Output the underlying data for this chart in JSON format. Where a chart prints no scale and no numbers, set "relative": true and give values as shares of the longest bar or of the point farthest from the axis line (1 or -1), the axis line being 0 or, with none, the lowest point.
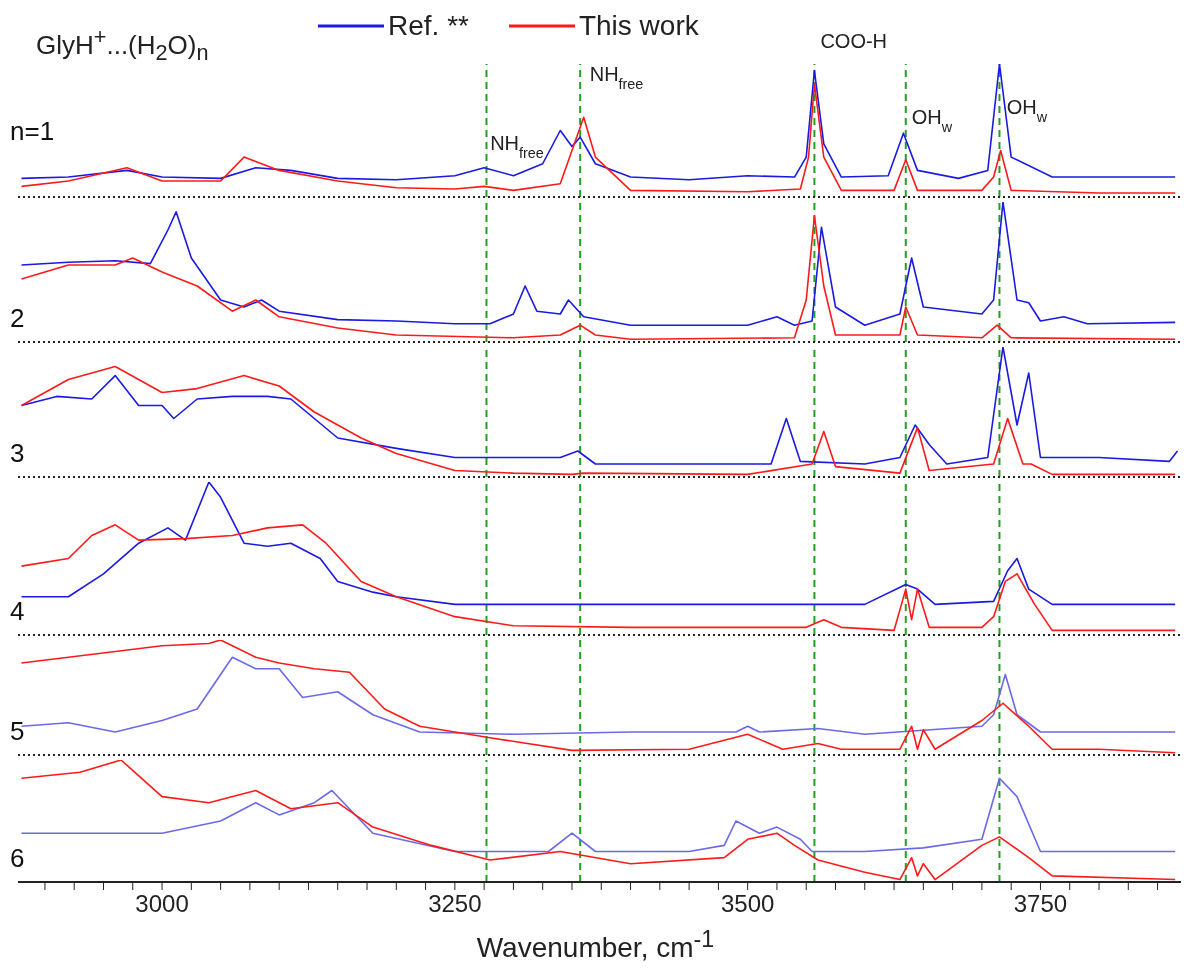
{
  "chart_data": [
    {
      "type": "line",
      "relative": true,
      "title": "GlyH$^{+}$...(H$_{2}$O)$_{n}$",
      "legend": "top",
      "xlim": [
        2877,
        3870
      ],
      "tick_labels": false,
      "annotations": [
        "n=1",
        {
          "text": "NH$_{free}$",
          "x": 3275,
          "y": 0.08
        },
        {
          "text": "NH$_{free}$",
          "x": 3360,
          "y": 0.6
        },
        {
          "text": "COO-H",
          "x": 3557,
          "y": 0.85
        },
        {
          "text": "OH$_{w}$",
          "x": 3635,
          "y": 0.28
        },
        {
          "text": "OH$_{w}$",
          "x": 3716,
          "y": 0.35
        }
      ],
      "ref_lines": [
        {
          "axis": "x",
          "value": 3277,
          "color": "#22a022",
          "line_style": "dashed"
        },
        {
          "axis": "x",
          "value": 3357,
          "color": "#22a022",
          "line_style": "dashed"
        },
        {
          "axis": "x",
          "value": 3557,
          "color": "#22a022",
          "line_style": "dashed"
        },
        {
          "axis": "x",
          "value": 3635,
          "color": "#22a022",
          "line_style": "dashed"
        },
        {
          "axis": "x",
          "value": 3715,
          "color": "#22a022",
          "line_style": "dashed"
        }
      ],
      "series": [
        {
          "name": "Ref. **",
          "color": "#1a1ae0",
          "x": [
            2880,
            2920,
            2970,
            3000,
            3050,
            3080,
            3110,
            3150,
            3200,
            3250,
            3275,
            3300,
            3325,
            3340,
            3350,
            3357,
            3370,
            3400,
            3450,
            3500,
            3540,
            3550,
            3557,
            3565,
            3580,
            3620,
            3633,
            3645,
            3680,
            3705,
            3715,
            3725,
            3760,
            3800,
            3865
          ],
          "values": [
            0.14,
            0.15,
            0.2,
            0.15,
            0.14,
            0.22,
            0.2,
            0.14,
            0.13,
            0.16,
            0.22,
            0.16,
            0.25,
            0.5,
            0.38,
            0.45,
            0.25,
            0.15,
            0.13,
            0.16,
            0.15,
            0.3,
            0.95,
            0.4,
            0.15,
            0.16,
            0.48,
            0.2,
            0.14,
            0.2,
            1,
            0.3,
            0.15,
            0.15,
            0.15
          ]
        },
        {
          "name": "This work",
          "color": "#ff1a1a",
          "x": [
            2880,
            2920,
            2970,
            3000,
            3050,
            3070,
            3100,
            3150,
            3200,
            3250,
            3275,
            3300,
            3340,
            3350,
            3360,
            3370,
            3400,
            3500,
            3545,
            3552,
            3557,
            3565,
            3580,
            3625,
            3635,
            3645,
            3700,
            3710,
            3716,
            3725,
            3800,
            3865
          ],
          "values": [
            0.08,
            0.12,
            0.22,
            0.12,
            0.12,
            0.3,
            0.2,
            0.12,
            0.07,
            0.06,
            0.08,
            0.05,
            0.1,
            0.35,
            0.6,
            0.3,
            0.05,
            0.04,
            0.06,
            0.3,
            0.85,
            0.3,
            0.05,
            0.05,
            0.28,
            0.05,
            0.05,
            0.15,
            0.35,
            0.05,
            0.03,
            0.03
          ]
        }
      ]
    },
    {
      "type": "line",
      "relative": true,
      "xlim": [
        2877,
        3870
      ],
      "tick_labels": false,
      "annotations": [
        "2"
      ],
      "ref_lines": [
        {
          "axis": "x",
          "value": 3277,
          "color": "#22a022",
          "line_style": "dashed"
        },
        {
          "axis": "x",
          "value": 3357,
          "color": "#22a022",
          "line_style": "dashed"
        },
        {
          "axis": "x",
          "value": 3557,
          "color": "#22a022",
          "line_style": "dashed"
        },
        {
          "axis": "x",
          "value": 3635,
          "color": "#22a022",
          "line_style": "dashed"
        },
        {
          "axis": "x",
          "value": 3715,
          "color": "#22a022",
          "line_style": "dashed"
        }
      ],
      "series": [
        {
          "color": "#1a1ae0",
          "x": [
            2880,
            2920,
            2960,
            2990,
            3005,
            3012,
            3025,
            3050,
            3070,
            3085,
            3100,
            3150,
            3200,
            3250,
            3280,
            3300,
            3310,
            3320,
            3340,
            3347,
            3360,
            3400,
            3500,
            3525,
            3540,
            3555,
            3563,
            3575,
            3600,
            3630,
            3640,
            3650,
            3700,
            3710,
            3718,
            3730,
            3740,
            3750,
            3770,
            3790,
            3865
          ],
          "values": [
            0.55,
            0.57,
            0.58,
            0.56,
            0.8,
            0.93,
            0.6,
            0.3,
            0.25,
            0.3,
            0.22,
            0.16,
            0.15,
            0.13,
            0.13,
            0.2,
            0.4,
            0.22,
            0.2,
            0.3,
            0.18,
            0.12,
            0.12,
            0.18,
            0.12,
            0.15,
            0.82,
            0.25,
            0.12,
            0.2,
            0.6,
            0.25,
            0.2,
            0.3,
            1,
            0.3,
            0.28,
            0.15,
            0.18,
            0.13,
            0.14
          ]
        },
        {
          "color": "#ff1a1a",
          "x": [
            2880,
            2920,
            2960,
            2975,
            3000,
            3030,
            3060,
            3080,
            3100,
            3150,
            3200,
            3300,
            3340,
            3357,
            3370,
            3400,
            3540,
            3550,
            3557,
            3565,
            3575,
            3630,
            3635,
            3645,
            3700,
            3713,
            3725,
            3865
          ],
          "values": [
            0.45,
            0.55,
            0.55,
            0.6,
            0.5,
            0.4,
            0.22,
            0.3,
            0.18,
            0.1,
            0.05,
            0.03,
            0.05,
            0.12,
            0.05,
            0.02,
            0.03,
            0.3,
            0.9,
            0.4,
            0.05,
            0.05,
            0.25,
            0.05,
            0.03,
            0.12,
            0.03,
            0.02
          ]
        }
      ]
    },
    {
      "type": "line",
      "relative": true,
      "xlim": [
        2877,
        3870
      ],
      "tick_labels": false,
      "annotations": [
        "3"
      ],
      "ref_lines": [
        {
          "axis": "x",
          "value": 3277,
          "color": "#22a022",
          "line_style": "dashed"
        },
        {
          "axis": "x",
          "value": 3357,
          "color": "#22a022",
          "line_style": "dashed"
        },
        {
          "axis": "x",
          "value": 3557,
          "color": "#22a022",
          "line_style": "dashed"
        },
        {
          "axis": "x",
          "value": 3635,
          "color": "#22a022",
          "line_style": "dashed"
        },
        {
          "axis": "x",
          "value": 3715,
          "color": "#22a022",
          "line_style": "dashed"
        }
      ],
      "series": [
        {
          "color": "#1a1ae0",
          "x": [
            2880,
            2910,
            2940,
            2960,
            2980,
            3000,
            3010,
            3030,
            3060,
            3090,
            3110,
            3130,
            3150,
            3200,
            3250,
            3300,
            3340,
            3355,
            3370,
            3450,
            3520,
            3533,
            3545,
            3600,
            3630,
            3643,
            3655,
            3670,
            3705,
            3718,
            3730,
            3740,
            3750,
            3800,
            3860,
            3867
          ],
          "values": [
            0.55,
            0.62,
            0.6,
            0.78,
            0.55,
            0.55,
            0.45,
            0.6,
            0.62,
            0.62,
            0.6,
            0.45,
            0.3,
            0.22,
            0.15,
            0.15,
            0.15,
            0.2,
            0.1,
            0.1,
            0.1,
            0.45,
            0.12,
            0.1,
            0.15,
            0.4,
            0.25,
            0.1,
            0.15,
            1,
            0.4,
            0.8,
            0.15,
            0.15,
            0.12,
            0.2
          ]
        },
        {
          "color": "#ff1a1a",
          "x": [
            2880,
            2920,
            2960,
            3000,
            3030,
            3070,
            3100,
            3130,
            3170,
            3200,
            3250,
            3300,
            3350,
            3360,
            3500,
            3555,
            3565,
            3575,
            3630,
            3645,
            3655,
            3710,
            3722,
            3735,
            3742,
            3760,
            3865
          ],
          "values": [
            0.55,
            0.75,
            0.85,
            0.65,
            0.68,
            0.78,
            0.7,
            0.5,
            0.3,
            0.18,
            0.05,
            0.03,
            0.02,
            0.03,
            0.02,
            0.1,
            0.35,
            0.08,
            0.03,
            0.38,
            0.05,
            0.1,
            0.45,
            0.1,
            0.1,
            0.02,
            0.02
          ]
        }
      ]
    },
    {
      "type": "line",
      "relative": true,
      "xlim": [
        2877,
        3870
      ],
      "tick_labels": false,
      "annotations": [
        "4"
      ],
      "ref_lines": [
        {
          "axis": "x",
          "value": 3277,
          "color": "#22a022",
          "line_style": "dashed"
        },
        {
          "axis": "x",
          "value": 3357,
          "color": "#22a022",
          "line_style": "dashed"
        },
        {
          "axis": "x",
          "value": 3557,
          "color": "#22a022",
          "line_style": "dashed"
        },
        {
          "axis": "x",
          "value": 3635,
          "color": "#22a022",
          "line_style": "dashed"
        },
        {
          "axis": "x",
          "value": 3715,
          "color": "#22a022",
          "line_style": "dashed"
        }
      ],
      "series": [
        {
          "color": "#1a1ae0",
          "x": [
            2880,
            2920,
            2950,
            2980,
            3005,
            3020,
            3040,
            3050,
            3070,
            3090,
            3110,
            3135,
            3150,
            3180,
            3200,
            3250,
            3400,
            3600,
            3635,
            3645,
            3660,
            3710,
            3722,
            3730,
            3740,
            3760,
            3865
          ],
          "values": [
            0.25,
            0.25,
            0.4,
            0.6,
            0.7,
            0.62,
            1,
            0.9,
            0.6,
            0.58,
            0.6,
            0.5,
            0.35,
            0.28,
            0.25,
            0.2,
            0.2,
            0.2,
            0.33,
            0.3,
            0.2,
            0.22,
            0.42,
            0.5,
            0.3,
            0.2,
            0.2
          ]
        },
        {
          "color": "#ff1a1a",
          "x": [
            2880,
            2920,
            2940,
            2960,
            2980,
            3020,
            3060,
            3090,
            3120,
            3140,
            3170,
            3200,
            3250,
            3300,
            3400,
            3550,
            3565,
            3580,
            3625,
            3635,
            3640,
            3645,
            3655,
            3700,
            3710,
            3720,
            3730,
            3745,
            3760,
            3865
          ],
          "values": [
            0.45,
            0.5,
            0.65,
            0.72,
            0.62,
            0.63,
            0.65,
            0.7,
            0.72,
            0.6,
            0.35,
            0.25,
            0.12,
            0.06,
            0.05,
            0.05,
            0.1,
            0.05,
            0.03,
            0.3,
            0.1,
            0.3,
            0.05,
            0.05,
            0.12,
            0.35,
            0.4,
            0.2,
            0.03,
            0.03
          ]
        }
      ]
    },
    {
      "type": "line",
      "relative": true,
      "xlim": [
        2877,
        3870
      ],
      "tick_labels": false,
      "annotations": [
        "5"
      ],
      "ref_lines": [
        {
          "axis": "x",
          "value": 3277,
          "color": "#22a022",
          "line_style": "dashed"
        },
        {
          "axis": "x",
          "value": 3357,
          "color": "#22a022",
          "line_style": "dashed"
        },
        {
          "axis": "x",
          "value": 3557,
          "color": "#22a022",
          "line_style": "dashed"
        },
        {
          "axis": "x",
          "value": 3635,
          "color": "#22a022",
          "line_style": "dashed"
        },
        {
          "axis": "x",
          "value": 3715,
          "color": "#22a022",
          "line_style": "dashed"
        }
      ],
      "series": [
        {
          "color": "#6a6ae8",
          "x": [
            2880,
            2920,
            2960,
            3000,
            3030,
            3060,
            3080,
            3100,
            3120,
            3150,
            3180,
            3220,
            3300,
            3400,
            3490,
            3500,
            3510,
            3560,
            3600,
            3700,
            3710,
            3720,
            3730,
            3750,
            3865
          ],
          "values": [
            0.25,
            0.28,
            0.2,
            0.3,
            0.4,
            0.85,
            0.75,
            0.75,
            0.5,
            0.55,
            0.35,
            0.2,
            0.18,
            0.2,
            0.2,
            0.25,
            0.2,
            0.23,
            0.18,
            0.25,
            0.35,
            0.7,
            0.35,
            0.2,
            0.2
          ]
        },
        {
          "color": "#ff1a1a",
          "x": [
            2880,
            2920,
            2960,
            3000,
            3040,
            3050,
            3080,
            3100,
            3130,
            3160,
            3190,
            3220,
            3280,
            3350,
            3450,
            3500,
            3530,
            3560,
            3580,
            3630,
            3640,
            3645,
            3650,
            3660,
            3700,
            3718,
            3740,
            3760,
            3800,
            3865
          ],
          "values": [
            0.8,
            0.85,
            0.9,
            0.95,
            0.97,
            1,
            0.85,
            0.8,
            0.75,
            0.72,
            0.4,
            0.25,
            0.15,
            0.04,
            0.05,
            0.18,
            0.05,
            0.1,
            0.05,
            0.05,
            0.25,
            0.05,
            0.22,
            0.05,
            0.3,
            0.45,
            0.25,
            0.05,
            0.05,
            0.02
          ]
        }
      ]
    },
    {
      "type": "line",
      "relative": true,
      "xlim": [
        2877,
        3870
      ],
      "tick_labels": "x",
      "xlabel": "Wavenumber, cm$^{-1}$",
      "annotations": [
        "6"
      ],
      "xticks": [
        {
          "value": 2900,
          "label": null
        },
        {
          "value": 2925,
          "label": null
        },
        {
          "value": 2950,
          "label": null
        },
        {
          "value": 2975,
          "label": null
        },
        3000,
        {
          "value": 3025,
          "label": null
        },
        {
          "value": 3050,
          "label": null
        },
        {
          "value": 3075,
          "label": null
        },
        {
          "value": 3100,
          "label": null
        },
        {
          "value": 3125,
          "label": null
        },
        {
          "value": 3150,
          "label": null
        },
        {
          "value": 3175,
          "label": null
        },
        {
          "value": 3200,
          "label": null
        },
        {
          "value": 3225,
          "label": null
        },
        3250,
        {
          "value": 3275,
          "label": null
        },
        {
          "value": 3300,
          "label": null
        },
        {
          "value": 3325,
          "label": null
        },
        {
          "value": 3350,
          "label": null
        },
        {
          "value": 3375,
          "label": null
        },
        {
          "value": 3400,
          "label": null
        },
        {
          "value": 3425,
          "label": null
        },
        {
          "value": 3450,
          "label": null
        },
        {
          "value": 3475,
          "label": null
        },
        3500,
        {
          "value": 3525,
          "label": null
        },
        {
          "value": 3550,
          "label": null
        },
        {
          "value": 3575,
          "label": null
        },
        {
          "value": 3600,
          "label": null
        },
        {
          "value": 3625,
          "label": null
        },
        {
          "value": 3650,
          "label": null
        },
        {
          "value": 3675,
          "label": null
        },
        {
          "value": 3700,
          "label": null
        },
        {
          "value": 3725,
          "label": null
        },
        3750,
        {
          "value": 3775,
          "label": null
        },
        {
          "value": 3800,
          "label": null
        },
        {
          "value": 3825,
          "label": null
        },
        {
          "value": 3850,
          "label": null
        }
      ],
      "ref_lines": [
        {
          "axis": "x",
          "value": 3277,
          "color": "#22a022",
          "line_style": "dashed"
        },
        {
          "axis": "x",
          "value": 3357,
          "color": "#22a022",
          "line_style": "dashed"
        },
        {
          "axis": "x",
          "value": 3557,
          "color": "#22a022",
          "line_style": "dashed"
        },
        {
          "axis": "x",
          "value": 3635,
          "color": "#22a022",
          "line_style": "dashed"
        },
        {
          "axis": "x",
          "value": 3715,
          "color": "#22a022",
          "line_style": "dashed"
        }
      ],
      "series": [
        {
          "color": "#6a6ae8",
          "x": [
            2880,
            2950,
            3000,
            3050,
            3080,
            3100,
            3130,
            3145,
            3180,
            3250,
            3330,
            3350,
            3370,
            3450,
            3480,
            3490,
            3510,
            3525,
            3545,
            3555,
            3600,
            3650,
            3700,
            3715,
            3730,
            3750,
            3865
          ],
          "values": [
            0.4,
            0.4,
            0.4,
            0.5,
            0.65,
            0.55,
            0.65,
            0.75,
            0.4,
            0.25,
            0.25,
            0.4,
            0.25,
            0.25,
            0.3,
            0.5,
            0.4,
            0.45,
            0.35,
            0.25,
            0.25,
            0.28,
            0.35,
            0.85,
            0.7,
            0.25,
            0.25
          ]
        },
        {
          "color": "#ff1a1a",
          "x": [
            2880,
            2930,
            2965,
            3000,
            3040,
            3080,
            3110,
            3150,
            3180,
            3230,
            3280,
            3340,
            3400,
            3480,
            3500,
            3525,
            3540,
            3560,
            3600,
            3630,
            3640,
            3645,
            3650,
            3660,
            3700,
            3715,
            3740,
            3760,
            3865
          ],
          "values": [
            0.85,
            0.9,
            1,
            0.7,
            0.65,
            0.75,
            0.6,
            0.65,
            0.45,
            0.3,
            0.18,
            0.25,
            0.15,
            0.2,
            0.35,
            0.4,
            0.3,
            0.18,
            0.08,
            0.02,
            0.2,
            0.05,
            0.15,
            0.02,
            0.3,
            0.37,
            0.2,
            0.05,
            0.02
          ]
        }
      ]
    }
  ]
}
